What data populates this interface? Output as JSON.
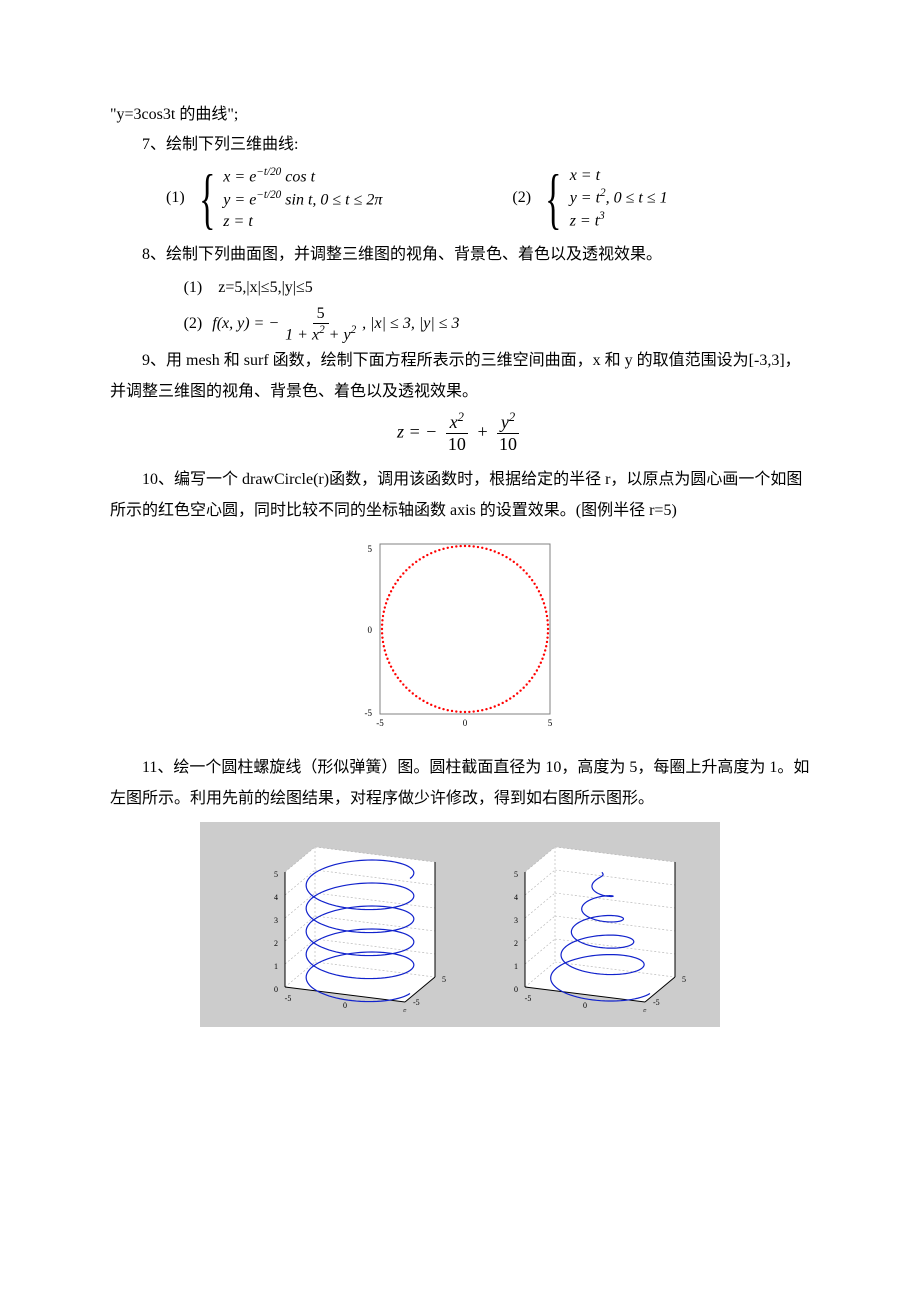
{
  "line0": "\"y=3cos3t 的曲线\";",
  "p7": {
    "title": "7、绘制下列三维曲线:",
    "label1": "(1)",
    "case1_r1": "x = e<sup>−t/20</sup> cos t",
    "case1_r2": "y = e<sup>−t/20</sup> sin t, 0 ≤ t ≤ 2π",
    "case1_r3": "z = t",
    "label2": "(2)",
    "case2_r1": "x = t",
    "case2_r2": "y = t<sup>2</sup>, 0 ≤ t ≤ 1",
    "case2_r3": "z = t<sup>3</sup>"
  },
  "p8": {
    "title": "8、绘制下列曲面图，并调整三维图的视角、背景色、着色以及透视效果。",
    "sub1": "(1)　z=5,|x|≤5,|y|≤5",
    "sub2_label": "(2)",
    "sub2_fx": "f(x, y) = −",
    "sub2_num": "5",
    "sub2_den": "1 + x<sup>2</sup> + y<sup>2</sup>",
    "sub2_tail": ", |x| ≤ 3, |y| ≤ 3"
  },
  "p9": {
    "text": "9、用 mesh 和 surf 函数，绘制下面方程所表示的三维空间曲面，x 和 y 的取值范围设为[-3,3]，并调整三维图的视角、背景色、着色以及透视效果。",
    "eq_lhs": "z = −",
    "eq_f1_num": "x<sup>2</sup>",
    "eq_f1_den": "10",
    "eq_plus": " + ",
    "eq_f2_num": "y<sup>2</sup>",
    "eq_f2_den": "10"
  },
  "p10": {
    "text": "10、编写一个 drawCircle(r)函数，调用该函数时，根据给定的半径 r，以原点为圆心画一个如图所示的红色空心圆，同时比较不同的坐标轴函数 axis 的设置效果。(图例半径 r=5)"
  },
  "p11": {
    "text": "11、绘一个圆柱螺旋线（形似弹簧）图。圆柱截面直径为 10，高度为 5，每圈上升高度为 1。如左图所示。利用先前的绘图结果，对程序做少许修改，得到如右图所示图形。"
  },
  "circle": {
    "radius": 5,
    "color": "#ff0000",
    "axis_color": "#808080",
    "background": "#ffffff",
    "ticks_x": [
      "-5",
      "0",
      "5"
    ],
    "ticks_y": [
      "-5",
      "0",
      "5"
    ]
  },
  "helix": {
    "panel_bg": "#cccccc",
    "axes_bg": "#ffffff",
    "line_color": "#1122cc",
    "grid_color": "#b0b0b0",
    "z_ticks": [
      "0",
      "1",
      "2",
      "3",
      "4",
      "5"
    ],
    "xy_ticks": [
      "-5",
      "0",
      "5"
    ]
  }
}
